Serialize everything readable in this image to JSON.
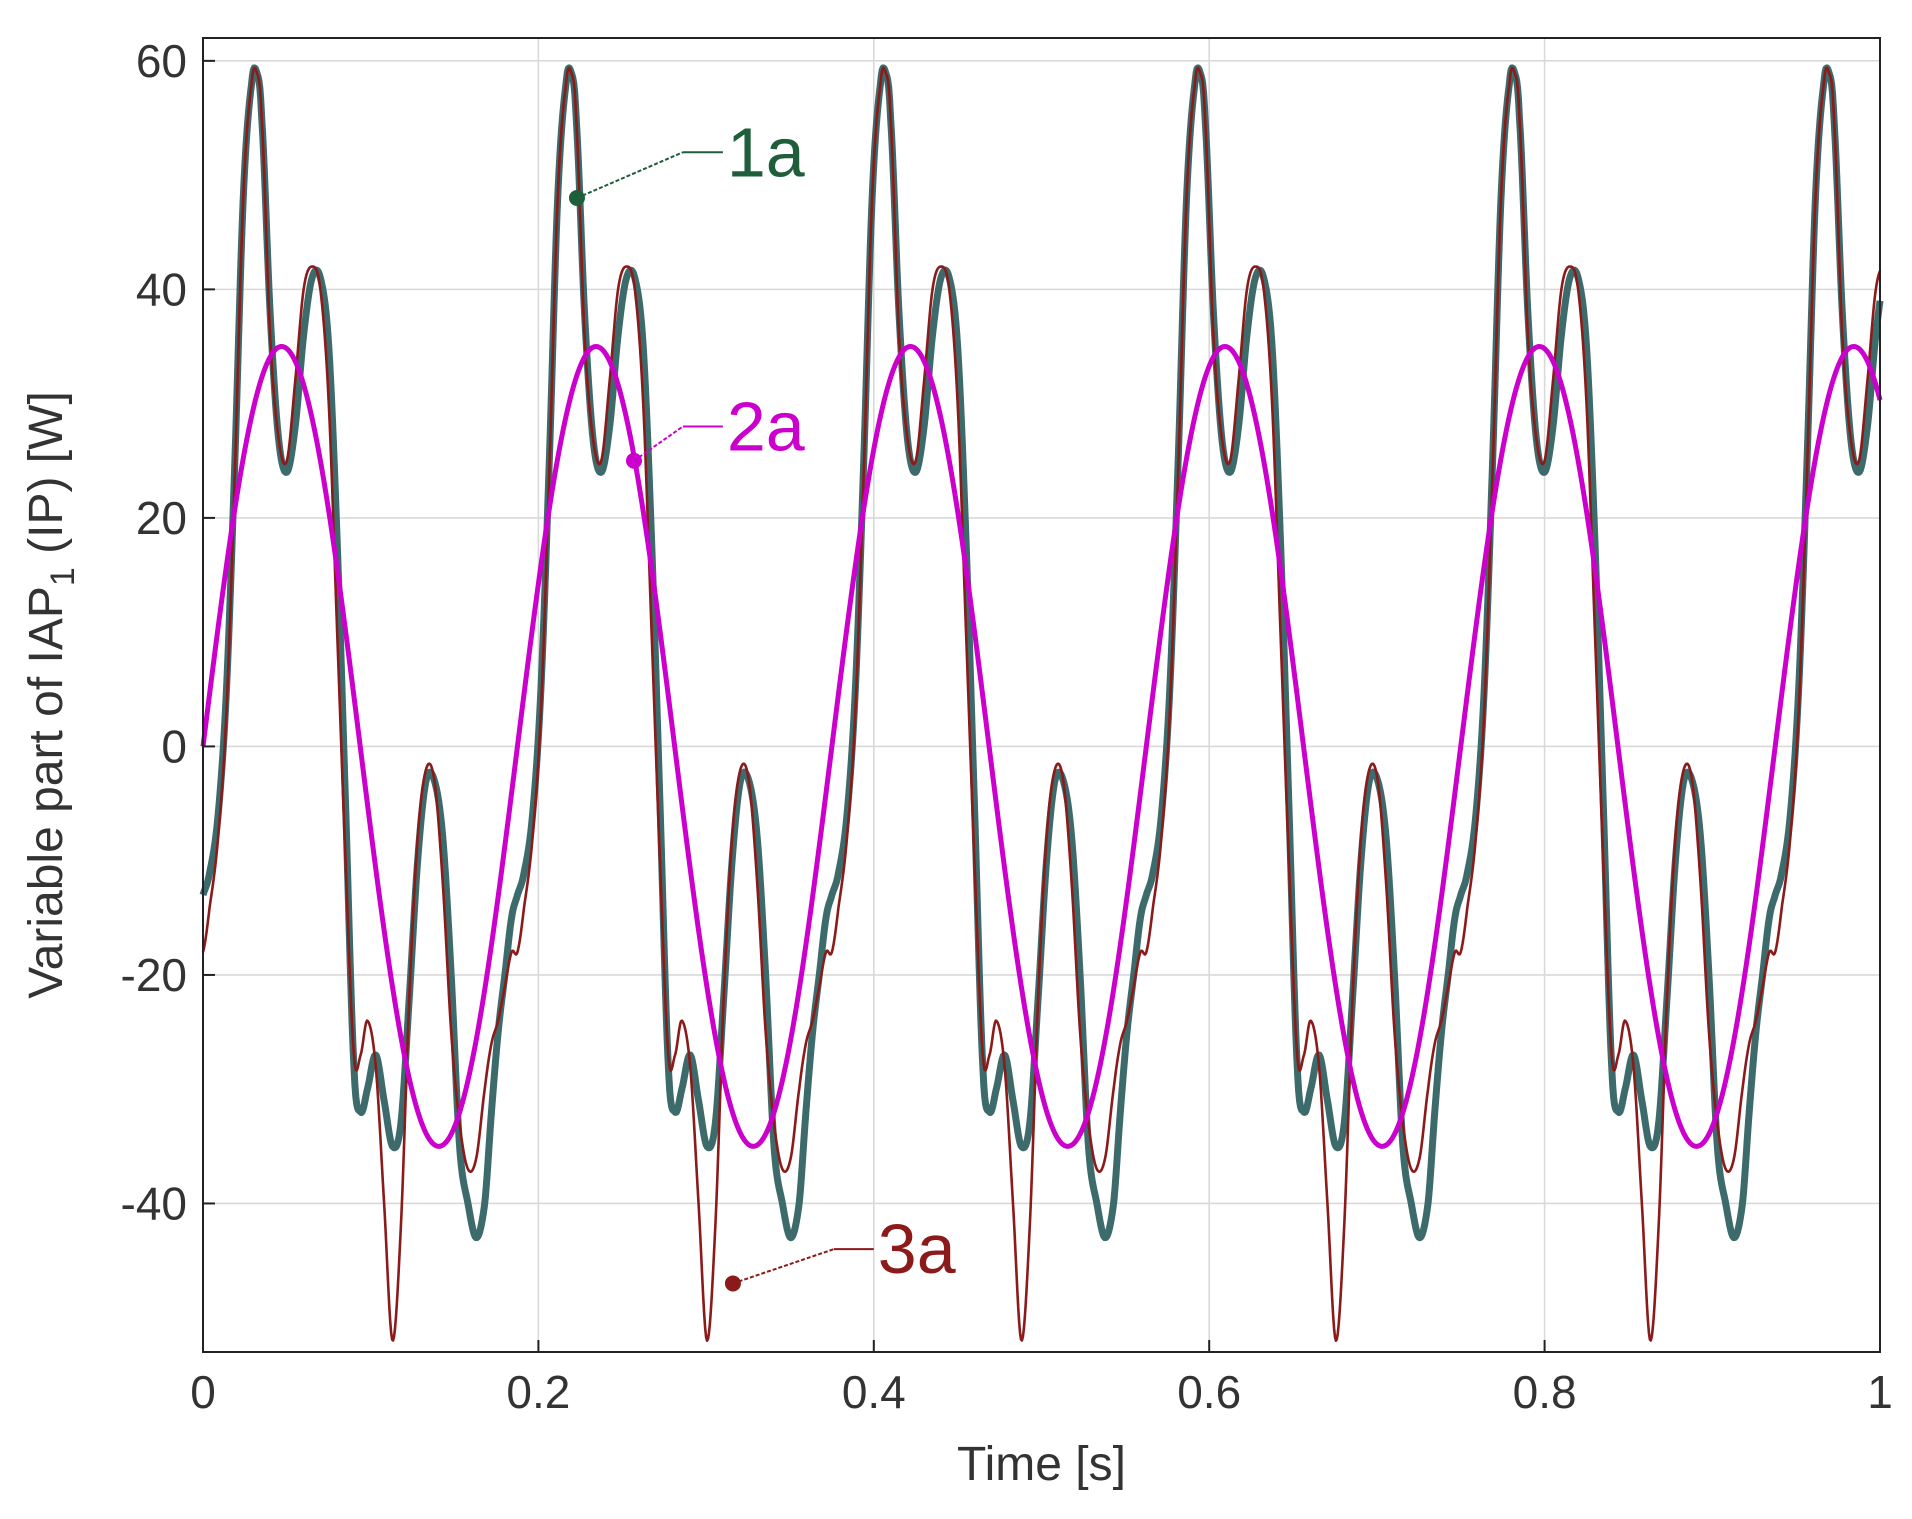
{
  "chart_data": {
    "type": "line",
    "xlabel": "Time [s]",
    "ylabel": {
      "main": "Variable part of IAP",
      "subscript": "1",
      "suffix": " (IP)  [W]"
    },
    "xlim": [
      0,
      1
    ],
    "ylim": [
      -53,
      62
    ],
    "xticks": [
      0,
      0.2,
      0.4,
      0.6,
      0.8,
      1
    ],
    "xtick_labels": [
      "0",
      "0.2",
      "0.4",
      "0.6",
      "0.8",
      "1"
    ],
    "yticks": [
      60,
      40,
      20,
      0,
      -20,
      -40
    ],
    "ytick_labels": [
      "60",
      "40",
      "20",
      "0",
      "-20",
      "-40"
    ],
    "grid": true,
    "period_s": 0.1875,
    "series": [
      {
        "name": "1a",
        "color": "#3d6b6b",
        "waveform_one_period": {
          "t": [
            0,
            0.004,
            0.009,
            0.014,
            0.019,
            0.024,
            0.029,
            0.032,
            0.035,
            0.04,
            0.045,
            0.05,
            0.055,
            0.06,
            0.065,
            0.07,
            0.075,
            0.08,
            0.085,
            0.09,
            0.094,
            0.098,
            0.103,
            0.108,
            0.113,
            0.118,
            0.123,
            0.128,
            0.133,
            0.138,
            0.143,
            0.148,
            0.153,
            0.158,
            0.163,
            0.168,
            0.172,
            0.176,
            0.18,
            0.184,
            0.1875
          ],
          "v": [
            -13,
            -11,
            -6,
            5,
            25,
            48,
            58,
            59,
            55,
            38,
            27,
            24,
            28,
            36,
            41,
            41,
            35,
            18,
            -5,
            -28,
            -32,
            -30,
            -27,
            -31,
            -35,
            -33,
            -22,
            -10,
            -3,
            -3,
            -8,
            -20,
            -35,
            -40,
            -43,
            -40,
            -32,
            -25,
            -20,
            -15,
            -13
          ]
        }
      },
      {
        "name": "2a",
        "color": "#cc00cc",
        "amplitude": 35
      },
      {
        "name": "3a",
        "color": "#8b1a1a",
        "waveform_one_period": {
          "t": [
            0,
            0.004,
            0.009,
            0.014,
            0.019,
            0.024,
            0.029,
            0.032,
            0.035,
            0.04,
            0.045,
            0.05,
            0.055,
            0.06,
            0.065,
            0.07,
            0.075,
            0.08,
            0.085,
            0.09,
            0.094,
            0.098,
            0.103,
            0.108,
            0.113,
            0.118,
            0.123,
            0.128,
            0.133,
            0.138,
            0.143,
            0.148,
            0.153,
            0.158,
            0.163,
            0.168,
            0.172,
            0.176,
            0.18,
            0.184,
            0.1875
          ],
          "v": [
            -18,
            -14,
            -8,
            3,
            24,
            48,
            58,
            59,
            55,
            36,
            27,
            25,
            32,
            40,
            42,
            40,
            30,
            10,
            -10,
            -27,
            -27,
            -24,
            -28,
            -40,
            -52,
            -42,
            -22,
            -8,
            -2,
            -3,
            -12,
            -25,
            -33,
            -37,
            -36,
            -30,
            -26,
            -24,
            -21,
            -18,
            -18
          ]
        }
      }
    ],
    "annotations": [
      {
        "text": "1a",
        "series": "1a",
        "color": "#1e5e3a",
        "point": [
          0.223,
          48
        ],
        "label_anchor": [
          0.31,
          52
        ]
      },
      {
        "text": "2a",
        "series": "2a",
        "color": "#cc00cc",
        "point": [
          0.257,
          25
        ],
        "label_anchor": [
          0.31,
          28
        ]
      },
      {
        "text": "3a",
        "series": "3a",
        "color": "#8b1a1a",
        "point": [
          0.316,
          -47
        ],
        "label_anchor": [
          0.4,
          -44
        ]
      }
    ]
  }
}
